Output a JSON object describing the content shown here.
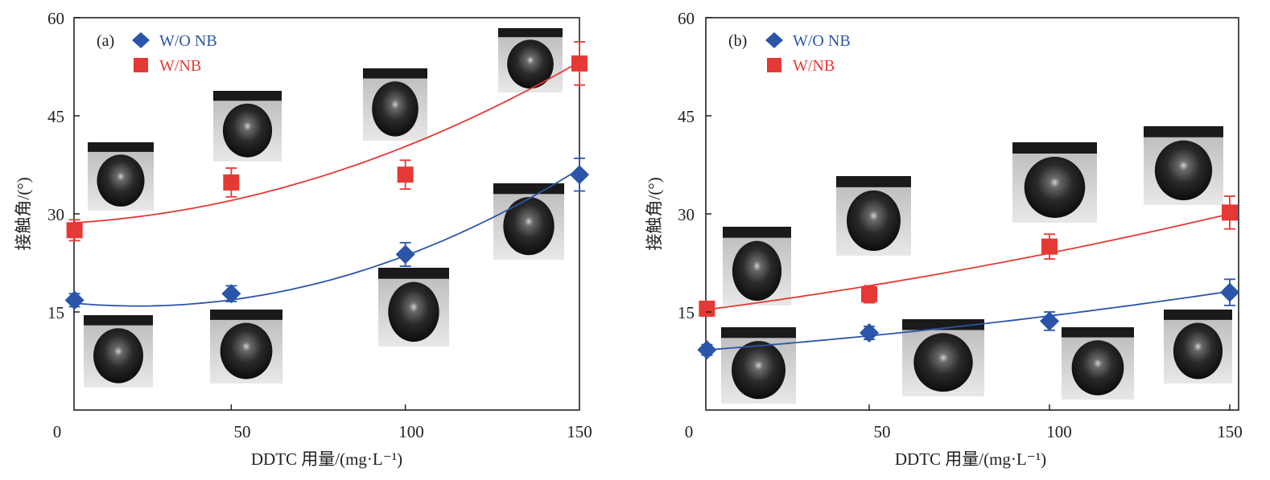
{
  "chart_data": [
    {
      "type": "scatter",
      "panel_label": "(a)",
      "title": "",
      "xlabel": "DDTC 用量/(mg·L⁻¹)",
      "ylabel": "接触角/(°)",
      "xlim": [
        0,
        150
      ],
      "ylim": [
        0,
        60
      ],
      "xticks": [
        "0",
        "50",
        "100",
        "150"
      ],
      "yticks": [
        "15",
        "30",
        "45",
        "60"
      ],
      "legend_position": "top-left",
      "series": [
        {
          "name": "W/O NB",
          "marker": "diamond",
          "color": "#2a55a8",
          "x": [
            5,
            50,
            100,
            150
          ],
          "y": [
            16.8,
            17.8,
            23.8,
            36.0
          ],
          "err": [
            1.0,
            1.2,
            1.8,
            2.5
          ],
          "fit": [
            16.6,
            -0.06,
            0.0013
          ]
        },
        {
          "name": "W/NB",
          "marker": "square",
          "color": "#e53935",
          "x": [
            5,
            50,
            100,
            150
          ],
          "y": [
            27.5,
            34.8,
            36.0,
            53.0
          ],
          "err": [
            1.6,
            2.2,
            2.2,
            3.3
          ],
          "fit": [
            28.5,
            0.024,
            0.00094
          ]
        }
      ],
      "annotation": "droplet contact-angle photo inset at each data point"
    },
    {
      "type": "scatter",
      "panel_label": "(b)",
      "title": "",
      "xlabel": "DDTC 用量/(mg·L⁻¹)",
      "ylabel": "接触角/(°)",
      "xlim": [
        0,
        150
      ],
      "ylim": [
        0,
        60
      ],
      "xticks": [
        "0",
        "50",
        "100",
        "150"
      ],
      "yticks": [
        "15",
        "30",
        "45",
        "60"
      ],
      "legend_position": "top-left",
      "series": [
        {
          "name": "W/O NB",
          "marker": "diamond",
          "color": "#2a55a8",
          "x": [
            5,
            50,
            100,
            150
          ],
          "y": [
            9.2,
            11.8,
            13.6,
            18.0
          ],
          "err": [
            0.8,
            1.0,
            1.4,
            2.0
          ],
          "fit": [
            9.0,
            0.04,
            0.00014
          ]
        },
        {
          "name": "W/NB",
          "marker": "square",
          "color": "#e53935",
          "x": [
            5,
            50,
            100,
            150
          ],
          "y": [
            15.5,
            17.7,
            25.0,
            30.2
          ],
          "err": [
            1.1,
            1.3,
            1.9,
            2.5
          ],
          "fit": [
            15.0,
            0.07,
            0.0002
          ]
        }
      ],
      "annotation": "droplet contact-angle photo inset at each data point"
    }
  ]
}
